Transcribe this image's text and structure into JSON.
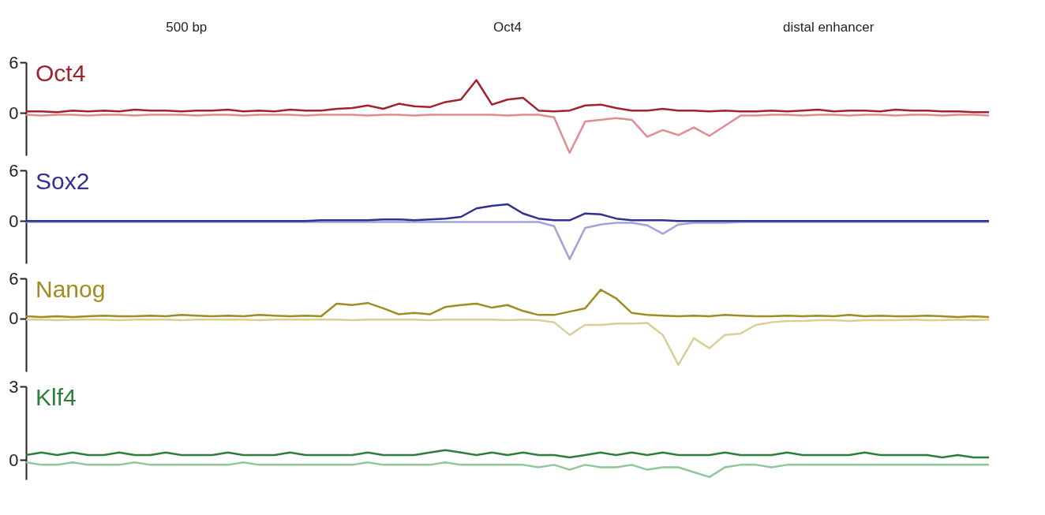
{
  "chart_data": [
    {
      "type": "other",
      "annotations": [
        "500 bp",
        "Oct4",
        "distal enhancer"
      ]
    },
    {
      "type": "line",
      "title": "Oct4",
      "ylim": [
        -5,
        6
      ],
      "yticks": [
        0,
        6
      ],
      "tick_labels": "y",
      "grid": false,
      "legend": false,
      "categories": [
        null,
        null,
        null,
        null,
        null,
        null,
        null,
        null,
        null,
        null,
        null,
        null,
        null,
        null,
        null,
        null,
        null,
        null,
        null,
        null,
        null,
        null,
        null,
        null,
        null,
        null,
        null,
        null,
        null,
        null,
        null,
        null,
        null,
        null,
        null,
        null,
        null,
        null,
        null,
        null,
        null,
        null,
        null,
        null,
        null,
        null,
        null,
        null,
        null,
        null,
        null,
        null,
        null,
        null,
        null,
        null,
        null,
        null,
        null,
        null,
        null,
        null,
        null
      ],
      "series": [
        {
          "color": "#a0232d",
          "values": [
            0.2,
            0.2,
            0.1,
            0.3,
            0.2,
            0.3,
            0.2,
            0.4,
            0.3,
            0.3,
            0.2,
            0.3,
            0.3,
            0.4,
            0.2,
            0.3,
            0.2,
            0.4,
            0.3,
            0.3,
            0.5,
            0.6,
            0.9,
            0.5,
            1.1,
            0.8,
            0.7,
            1.3,
            1.6,
            3.9,
            1.0,
            1.6,
            1.8,
            0.3,
            0.2,
            0.3,
            0.9,
            1.0,
            0.6,
            0.3,
            0.3,
            0.5,
            0.3,
            0.3,
            0.2,
            0.3,
            0.2,
            0.2,
            0.3,
            0.2,
            0.3,
            0.4,
            0.2,
            0.3,
            0.3,
            0.2,
            0.4,
            0.3,
            0.3,
            0.2,
            0.2,
            0.1,
            0.1
          ]
        },
        {
          "color": "#e08c93",
          "values": [
            -0.2,
            -0.3,
            -0.2,
            -0.2,
            -0.3,
            -0.2,
            -0.2,
            -0.3,
            -0.2,
            -0.2,
            -0.2,
            -0.3,
            -0.2,
            -0.2,
            -0.3,
            -0.2,
            -0.2,
            -0.2,
            -0.3,
            -0.2,
            -0.2,
            -0.2,
            -0.3,
            -0.2,
            -0.2,
            -0.3,
            -0.2,
            -0.2,
            -0.2,
            -0.2,
            -0.2,
            -0.3,
            -0.2,
            -0.2,
            -0.5,
            -4.7,
            -1.0,
            -0.8,
            -0.6,
            -0.8,
            -2.8,
            -2.0,
            -2.6,
            -1.7,
            -2.7,
            -1.5,
            -0.3,
            -0.3,
            -0.2,
            -0.2,
            -0.3,
            -0.2,
            -0.2,
            -0.3,
            -0.2,
            -0.2,
            -0.3,
            -0.2,
            -0.2,
            -0.3,
            -0.2,
            -0.2,
            -0.3
          ]
        }
      ]
    },
    {
      "type": "line",
      "title": "Sox2",
      "ylim": [
        -5,
        6
      ],
      "yticks": [
        0,
        6
      ],
      "tick_labels": "y",
      "grid": false,
      "legend": false,
      "categories": [
        null,
        null,
        null,
        null,
        null,
        null,
        null,
        null,
        null,
        null,
        null,
        null,
        null,
        null,
        null,
        null,
        null,
        null,
        null,
        null,
        null,
        null,
        null,
        null,
        null,
        null,
        null,
        null,
        null,
        null,
        null,
        null,
        null,
        null,
        null,
        null,
        null,
        null,
        null,
        null,
        null,
        null,
        null,
        null,
        null,
        null,
        null,
        null,
        null,
        null,
        null,
        null,
        null,
        null,
        null,
        null,
        null,
        null,
        null,
        null,
        null,
        null,
        null
      ],
      "series": [
        {
          "color": "#2e3192",
          "values": [
            0.0,
            0.0,
            0.0,
            0.0,
            0.0,
            0.0,
            0.0,
            0.0,
            0.0,
            0.0,
            0.0,
            0.0,
            0.0,
            0.0,
            0.0,
            0.0,
            0.0,
            0.0,
            0.0,
            0.1,
            0.1,
            0.1,
            0.1,
            0.2,
            0.2,
            0.1,
            0.2,
            0.3,
            0.5,
            1.5,
            1.8,
            2.0,
            0.9,
            0.3,
            0.1,
            0.1,
            0.9,
            0.8,
            0.3,
            0.1,
            0.1,
            0.1,
            0.0,
            0.0,
            0.0,
            0.0,
            0.0,
            0.0,
            0.0,
            0.0,
            0.0,
            0.0,
            0.0,
            0.0,
            0.0,
            0.0,
            0.0,
            0.0,
            0.0,
            0.0,
            0.0,
            0.0,
            0.0
          ]
        },
        {
          "color": "#9fa3d8",
          "values": [
            -0.1,
            -0.1,
            -0.1,
            -0.1,
            -0.1,
            -0.1,
            -0.1,
            -0.1,
            -0.1,
            -0.1,
            -0.1,
            -0.1,
            -0.1,
            -0.1,
            -0.1,
            -0.1,
            -0.1,
            -0.1,
            -0.1,
            -0.1,
            -0.1,
            -0.1,
            -0.1,
            -0.1,
            -0.1,
            -0.1,
            -0.1,
            -0.1,
            -0.1,
            -0.1,
            -0.1,
            -0.1,
            -0.1,
            -0.1,
            -0.6,
            -4.5,
            -0.8,
            -0.4,
            -0.2,
            -0.2,
            -0.5,
            -1.5,
            -0.4,
            -0.2,
            -0.2,
            -0.2,
            -0.1,
            -0.1,
            -0.1,
            -0.1,
            -0.1,
            -0.1,
            -0.1,
            -0.1,
            -0.1,
            -0.1,
            -0.1,
            -0.1,
            -0.1,
            -0.1,
            -0.1,
            -0.1,
            -0.1
          ]
        }
      ]
    },
    {
      "type": "line",
      "title": "Nanog",
      "ylim": [
        -8,
        6
      ],
      "yticks": [
        0,
        6
      ],
      "tick_labels": "y",
      "grid": false,
      "legend": false,
      "categories": [
        null,
        null,
        null,
        null,
        null,
        null,
        null,
        null,
        null,
        null,
        null,
        null,
        null,
        null,
        null,
        null,
        null,
        null,
        null,
        null,
        null,
        null,
        null,
        null,
        null,
        null,
        null,
        null,
        null,
        null,
        null,
        null,
        null,
        null,
        null,
        null,
        null,
        null,
        null,
        null,
        null,
        null,
        null,
        null,
        null,
        null,
        null,
        null,
        null,
        null,
        null,
        null,
        null,
        null,
        null,
        null,
        null,
        null,
        null,
        null,
        null,
        null,
        null
      ],
      "series": [
        {
          "color": "#a08c20",
          "values": [
            0.3,
            0.2,
            0.3,
            0.2,
            0.3,
            0.4,
            0.3,
            0.3,
            0.4,
            0.3,
            0.5,
            0.4,
            0.3,
            0.4,
            0.3,
            0.5,
            0.4,
            0.3,
            0.4,
            0.3,
            2.2,
            2.0,
            2.3,
            1.5,
            0.6,
            0.8,
            0.6,
            1.7,
            2.0,
            2.2,
            1.6,
            2.0,
            1.1,
            0.5,
            0.5,
            1.0,
            1.5,
            4.3,
            3.0,
            0.8,
            0.5,
            0.4,
            0.3,
            0.4,
            0.3,
            0.5,
            0.4,
            0.3,
            0.3,
            0.4,
            0.3,
            0.4,
            0.3,
            0.5,
            0.3,
            0.4,
            0.3,
            0.3,
            0.4,
            0.3,
            0.2,
            0.3,
            0.2
          ]
        },
        {
          "color": "#d9cf95",
          "values": [
            -0.2,
            -0.2,
            -0.3,
            -0.2,
            -0.2,
            -0.2,
            -0.3,
            -0.2,
            -0.2,
            -0.2,
            -0.3,
            -0.2,
            -0.2,
            -0.2,
            -0.2,
            -0.3,
            -0.2,
            -0.2,
            -0.2,
            -0.2,
            -0.2,
            -0.3,
            -0.2,
            -0.2,
            -0.2,
            -0.2,
            -0.3,
            -0.2,
            -0.2,
            -0.2,
            -0.2,
            -0.3,
            -0.2,
            -0.3,
            -0.6,
            -2.5,
            -1.0,
            -1.0,
            -0.8,
            -0.8,
            -0.7,
            -2.5,
            -7.0,
            -3.0,
            -4.5,
            -2.5,
            -2.3,
            -1.0,
            -0.6,
            -0.4,
            -0.4,
            -0.3,
            -0.3,
            -0.4,
            -0.3,
            -0.3,
            -0.3,
            -0.2,
            -0.3,
            -0.3,
            -0.2,
            -0.3,
            -0.2
          ]
        }
      ]
    },
    {
      "type": "line",
      "title": "Klf4",
      "ylim": [
        -0.8,
        3
      ],
      "yticks": [
        0,
        3
      ],
      "tick_labels": "y",
      "grid": false,
      "legend": false,
      "categories": [
        null,
        null,
        null,
        null,
        null,
        null,
        null,
        null,
        null,
        null,
        null,
        null,
        null,
        null,
        null,
        null,
        null,
        null,
        null,
        null,
        null,
        null,
        null,
        null,
        null,
        null,
        null,
        null,
        null,
        null,
        null,
        null,
        null,
        null,
        null,
        null,
        null,
        null,
        null,
        null,
        null,
        null,
        null,
        null,
        null,
        null,
        null,
        null,
        null,
        null,
        null,
        null,
        null,
        null,
        null,
        null,
        null,
        null,
        null,
        null,
        null,
        null,
        null
      ],
      "series": [
        {
          "color": "#2e7d3a",
          "values": [
            0.2,
            0.3,
            0.2,
            0.3,
            0.2,
            0.2,
            0.3,
            0.2,
            0.2,
            0.3,
            0.2,
            0.2,
            0.2,
            0.3,
            0.2,
            0.2,
            0.2,
            0.3,
            0.2,
            0.2,
            0.2,
            0.2,
            0.3,
            0.2,
            0.2,
            0.2,
            0.3,
            0.4,
            0.3,
            0.2,
            0.3,
            0.2,
            0.3,
            0.2,
            0.2,
            0.1,
            0.2,
            0.3,
            0.2,
            0.3,
            0.2,
            0.3,
            0.2,
            0.2,
            0.2,
            0.3,
            0.2,
            0.2,
            0.2,
            0.3,
            0.2,
            0.2,
            0.2,
            0.2,
            0.3,
            0.2,
            0.2,
            0.2,
            0.2,
            0.1,
            0.2,
            0.1,
            0.1
          ]
        },
        {
          "color": "#8fc79a",
          "values": [
            -0.1,
            -0.2,
            -0.2,
            -0.1,
            -0.2,
            -0.2,
            -0.2,
            -0.1,
            -0.2,
            -0.2,
            -0.2,
            -0.2,
            -0.2,
            -0.2,
            -0.1,
            -0.2,
            -0.2,
            -0.2,
            -0.2,
            -0.2,
            -0.2,
            -0.2,
            -0.1,
            -0.2,
            -0.2,
            -0.2,
            -0.2,
            -0.1,
            -0.2,
            -0.2,
            -0.2,
            -0.2,
            -0.2,
            -0.3,
            -0.2,
            -0.4,
            -0.2,
            -0.3,
            -0.3,
            -0.2,
            -0.4,
            -0.3,
            -0.3,
            -0.5,
            -0.7,
            -0.3,
            -0.2,
            -0.2,
            -0.3,
            -0.2,
            -0.2,
            -0.2,
            -0.2,
            -0.2,
            -0.2,
            -0.2,
            -0.2,
            -0.2,
            -0.2,
            -0.2,
            -0.2,
            -0.2,
            -0.2
          ]
        }
      ]
    }
  ]
}
